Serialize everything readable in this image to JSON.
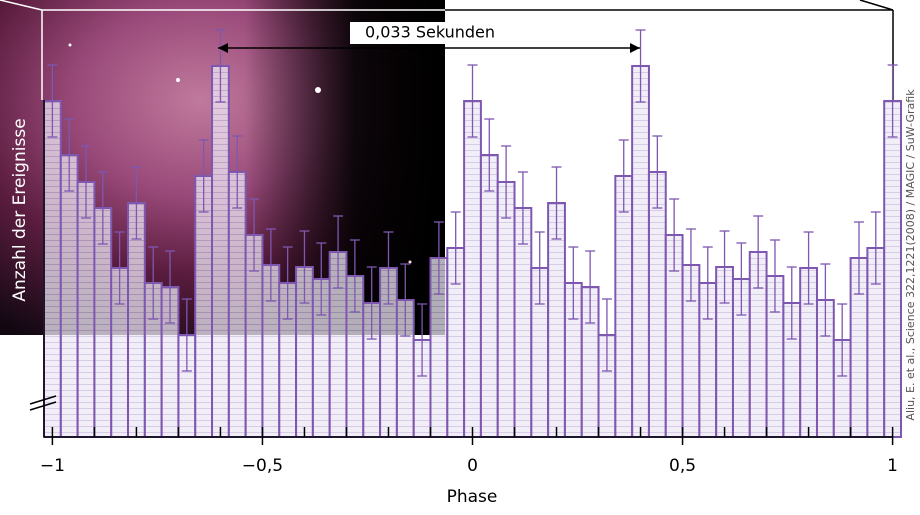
{
  "chart_data": {
    "type": "histogram",
    "ylabel": "Anzahl der Ereignisse",
    "xlabel": "Phase",
    "annotation": "0,033 Sekunden",
    "credit": "Aliu, E. et al., Science 322,1221(2008) / MAGIC / SuW-Grafik",
    "bins": [
      -1.02,
      -0.98,
      -0.94,
      -0.9,
      -0.86,
      -0.82,
      -0.78,
      -0.74,
      -0.7,
      -0.66,
      -0.62,
      -0.58,
      -0.54,
      -0.5,
      -0.46,
      -0.42,
      -0.38,
      -0.34,
      -0.3,
      -0.26,
      -0.22,
      -0.18,
      -0.14,
      -0.1,
      -0.06,
      -0.02,
      0.02,
      0.06,
      0.1,
      0.14,
      0.18,
      0.22,
      0.26,
      0.3,
      0.34,
      0.38,
      0.42,
      0.46,
      0.5,
      0.54,
      0.58,
      0.62,
      0.66,
      0.7,
      0.74,
      0.78,
      0.82,
      0.86,
      0.9,
      0.94,
      0.98,
      1.02
    ],
    "values": [
      336,
      282,
      255,
      229,
      169,
      234,
      154,
      150,
      102,
      261,
      371,
      265,
      202,
      172,
      154,
      170,
      158,
      185,
      161,
      134,
      169,
      137,
      97,
      179,
      189,
      336,
      282,
      255,
      229,
      169,
      234,
      154,
      150,
      102,
      261,
      371,
      265,
      202,
      172,
      154,
      170,
      158,
      185,
      161,
      134,
      169,
      137,
      97,
      179,
      189,
      336
    ],
    "errors": [
      36,
      36,
      36,
      36,
      36,
      36,
      36,
      36,
      36,
      36,
      36,
      36,
      36,
      36,
      36,
      36,
      36,
      36,
      36,
      36,
      36,
      36,
      36,
      36,
      36,
      36,
      36,
      36,
      36,
      36,
      36,
      36,
      36,
      36,
      36,
      36,
      36,
      36,
      36,
      36,
      36,
      36,
      36,
      36,
      36,
      36,
      36,
      36,
      36,
      36,
      36
    ],
    "color": "#7e57b0",
    "xlim": [
      -1.02,
      1.02
    ],
    "ylim": [
      0,
      427
    ],
    "xticks": [
      {
        "value": -1,
        "label": "−1"
      },
      {
        "value": -0.5,
        "label": "−0,5"
      },
      0,
      {
        "value": 0.5,
        "label": "0,5"
      },
      1
    ],
    "minor_xticks": [
      -1,
      -0.9,
      -0.8,
      -0.7,
      -0.6,
      -0.5,
      -0.4,
      -0.3,
      -0.2,
      -0.1,
      0,
      0.1,
      0.2,
      0.3,
      0.4,
      0.5,
      0.6,
      0.7,
      0.8,
      0.9,
      1
    ]
  }
}
